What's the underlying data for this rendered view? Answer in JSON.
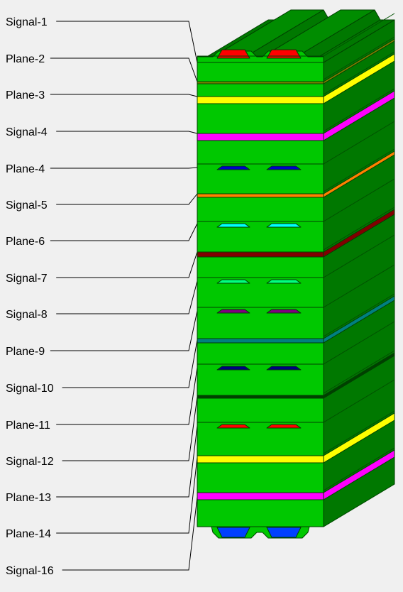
{
  "layers": [
    {
      "label": "Signal-1",
      "type": "signal",
      "color": "#ff0000"
    },
    {
      "label": "Plane-2",
      "type": "plane",
      "color": "#808000"
    },
    {
      "label": "Plane-3",
      "type": "plane",
      "color": "#ffff00"
    },
    {
      "label": "Signal-4",
      "type": "plane",
      "color": "#ff00ff"
    },
    {
      "label": "Plane-4",
      "type": "signal",
      "color": "#0000c8"
    },
    {
      "label": "Signal-5",
      "type": "plane",
      "color": "#ff8000"
    },
    {
      "label": "Plane-6",
      "type": "signal",
      "color": "#00ffff"
    },
    {
      "label": "Signal-7",
      "type": "plane",
      "color": "#800000"
    },
    {
      "label": "Signal-8",
      "type": "signal",
      "color": "#00ff80"
    },
    {
      "label": "Plane-9",
      "type": "signal",
      "color": "#800080"
    },
    {
      "label": "Signal-10",
      "type": "plane",
      "color": "#008080"
    },
    {
      "label": "Plane-11",
      "type": "signal",
      "color": "#000080"
    },
    {
      "label": "Signal-12",
      "type": "plane",
      "color": "#004000"
    },
    {
      "label": "Plane-13",
      "type": "signal",
      "color": "#ff0000"
    },
    {
      "label": "Plane-14",
      "type": "plane",
      "color": "#ffff00"
    },
    {
      "label": "Signal-16",
      "type": "plane",
      "color": "#ff00ff"
    },
    {
      "label": "",
      "type": "signal",
      "color": "#0040ff"
    }
  ],
  "colors": {
    "dielectric": "#00c800",
    "dielectric_side": "#007800",
    "dielectric_dark": "#005000",
    "outline": "#004000",
    "leader": "#000000"
  }
}
